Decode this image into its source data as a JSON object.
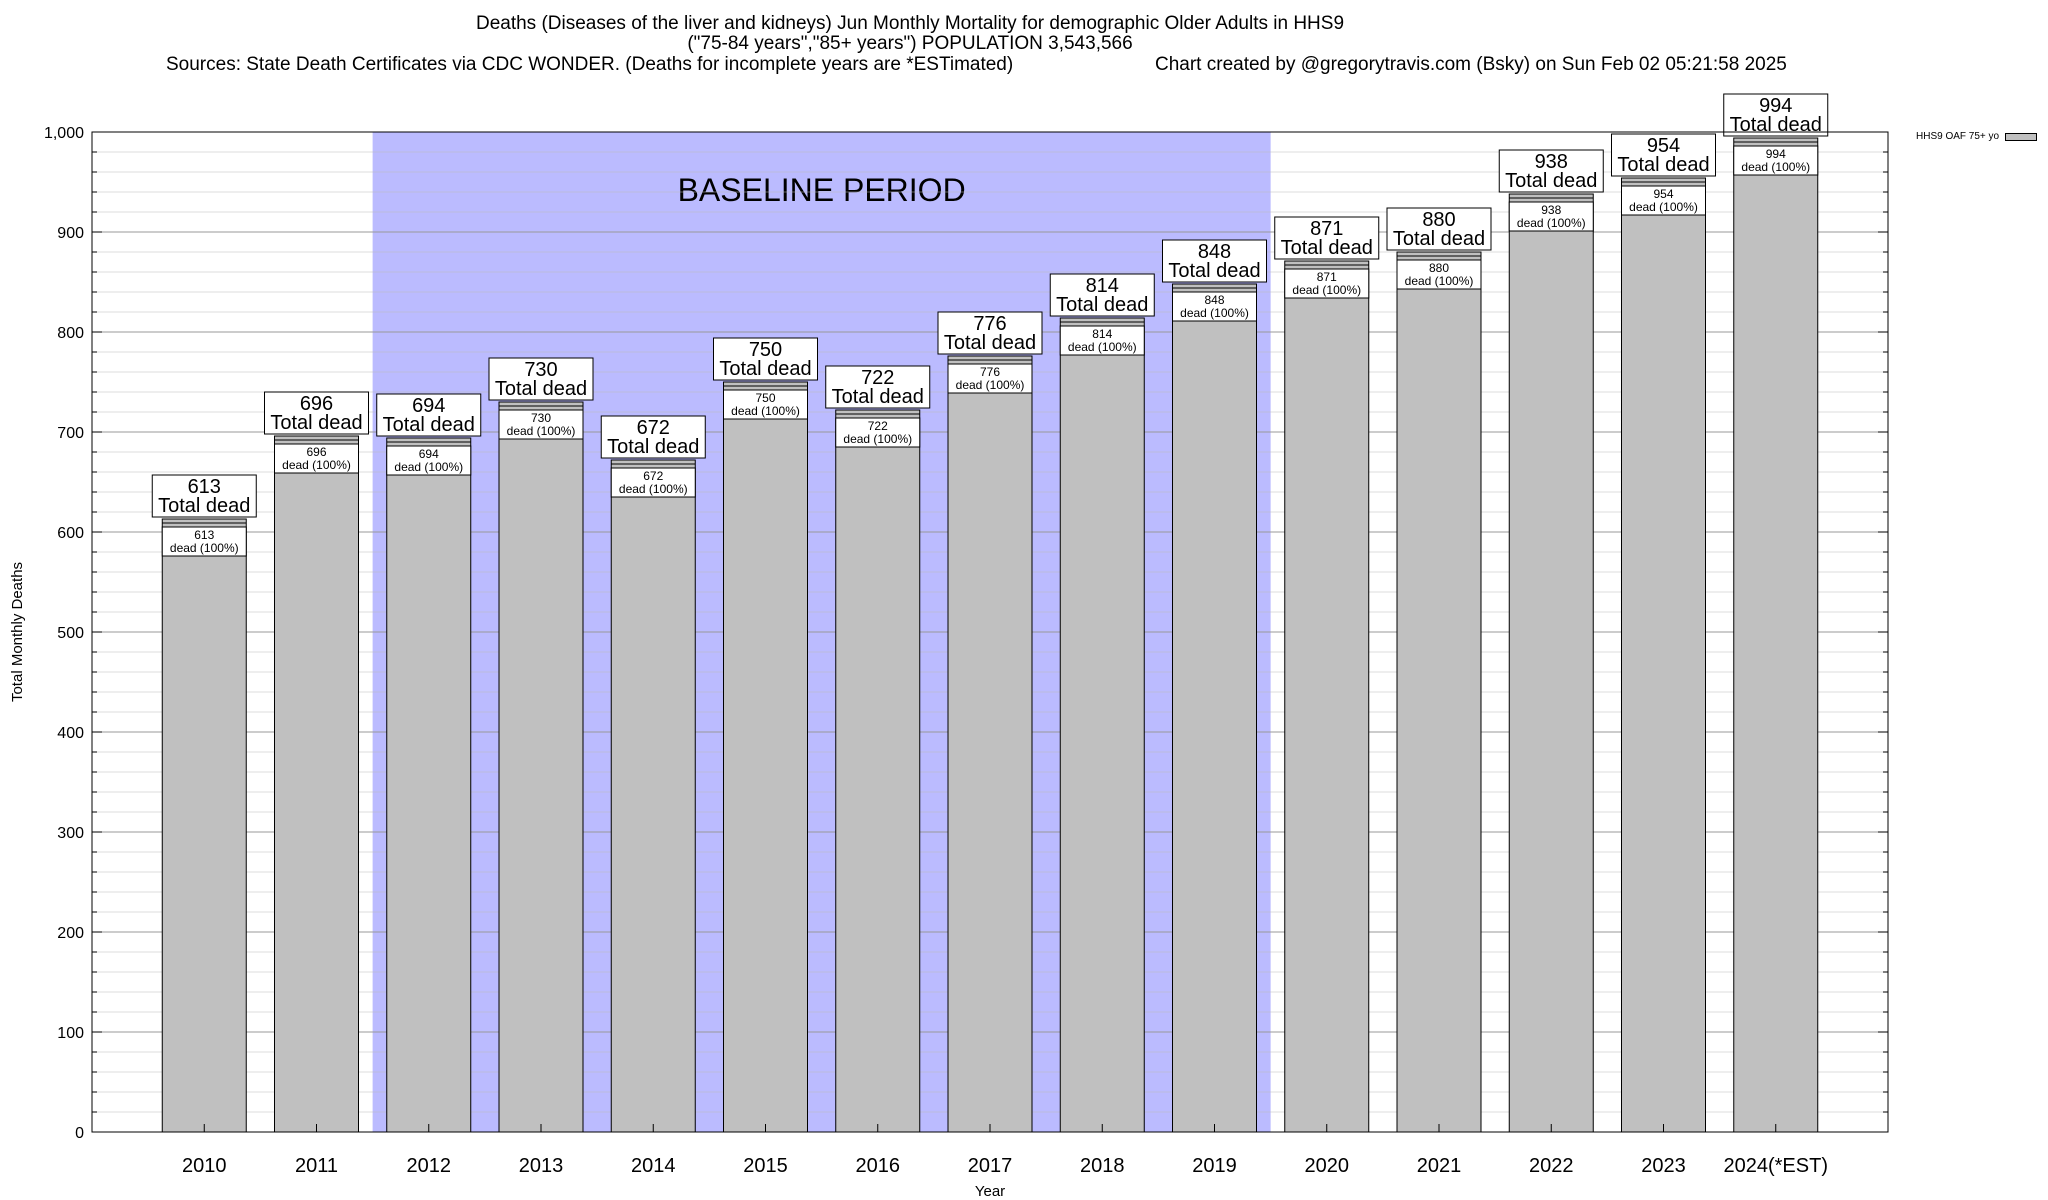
{
  "title": {
    "line1": "Deaths (Diseases of the liver and kidneys) Jun Monthly Mortality for demographic Older Adults in HHS9",
    "line2": "(\"75-84 years\",\"85+ years\") POPULATION 3,543,566",
    "sources": "Sources: State Death Certificates via CDC WONDER. (Deaths for incomplete years are *ESTimated)",
    "credit": "Chart created by @gregorytravis.com (Bsky) on Sun Feb 02 05:21:58 2025"
  },
  "legend": {
    "label": "HHS9 OAF 75+ yo"
  },
  "colors": {
    "bar": "#c0c0c0",
    "baseline": "#bbbbff",
    "grid": "#bbbbbb"
  },
  "chart_data": {
    "type": "bar",
    "xlabel": "Year",
    "ylabel": "Total Monthly Deaths",
    "ylim": [
      0,
      1000
    ],
    "yticks": [
      "0",
      "100",
      "200",
      "300",
      "400",
      "500",
      "600",
      "700",
      "800",
      "900",
      "1,000"
    ],
    "categories": [
      "2010",
      "2011",
      "2012",
      "2013",
      "2014",
      "2015",
      "2016",
      "2017",
      "2018",
      "2019",
      "2020",
      "2021",
      "2022",
      "2023",
      "2024(*EST)"
    ],
    "series": [
      {
        "name": "HHS9 OAF 75+ yo",
        "values": [
          613,
          696,
          694,
          730,
          672,
          750,
          722,
          776,
          814,
          848,
          871,
          880,
          938,
          954,
          994
        ]
      }
    ],
    "total_label": "Total dead",
    "inner_label": "dead (100%)",
    "baseline": {
      "label": "BASELINE PERIOD",
      "from": "2012",
      "to": "2019"
    },
    "grid": true,
    "legend_position": "top-right"
  }
}
